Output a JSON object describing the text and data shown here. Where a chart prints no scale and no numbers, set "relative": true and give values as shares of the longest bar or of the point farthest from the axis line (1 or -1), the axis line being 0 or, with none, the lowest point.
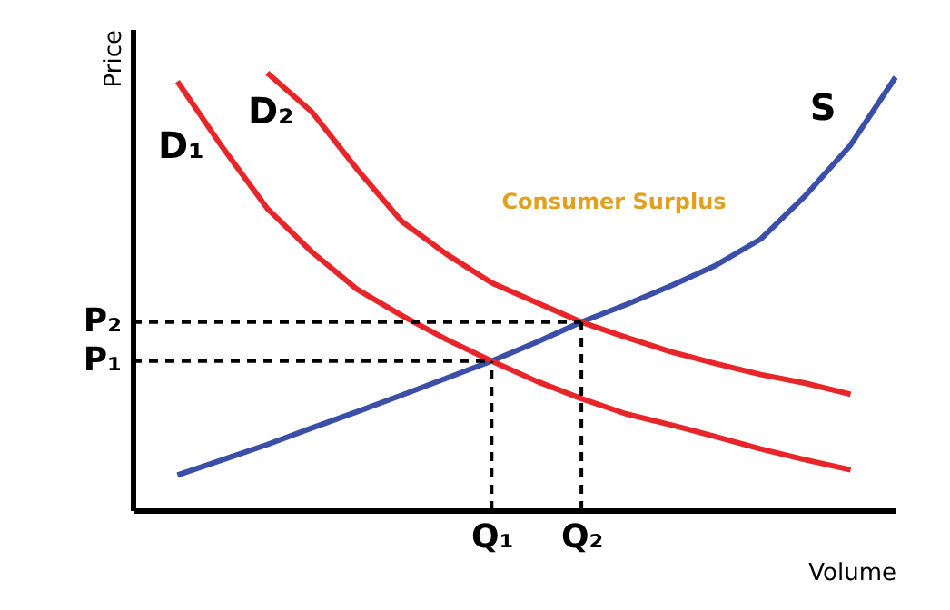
{
  "chart_data": {
    "type": "line",
    "relative": true,
    "xlabel": "Volume",
    "ylabel": "Price",
    "grid": false,
    "marker": "none",
    "categories": [
      null,
      null,
      null,
      null,
      null,
      null,
      null,
      null,
      "Q₁",
      null,
      "Q₂",
      null,
      null,
      null,
      null,
      null,
      null,
      null
    ],
    "annotations": [
      "Consumer Surplus"
    ],
    "series": [
      {
        "name": "S",
        "color": "#3b4fa8",
        "line_style": "solid",
        "values": [
          null,
          0.08,
          0.115,
          0.15,
          0.188,
          0.225,
          0.263,
          0.302,
          0.341,
          0.384,
          0.43,
          0.47,
          0.513,
          0.56,
          0.62,
          0.72,
          0.835,
          0.99
        ]
      },
      {
        "name": "D₁",
        "color": "#e8262a",
        "line_style": "solid",
        "values": [
          null,
          0.98,
          0.83,
          0.69,
          0.59,
          0.505,
          0.445,
          0.39,
          0.341,
          0.295,
          0.255,
          0.22,
          0.195,
          0.168,
          0.14,
          0.115,
          0.092,
          null
        ]
      },
      {
        "name": "D₂",
        "color": "#e8262a",
        "line_style": "solid",
        "values": [
          null,
          null,
          null,
          1.0,
          0.91,
          0.78,
          0.66,
          0.585,
          0.52,
          0.475,
          0.43,
          0.395,
          0.362,
          0.335,
          0.31,
          0.29,
          0.265,
          null
        ]
      },
      {
        "name": "P₁",
        "color": "#000000",
        "line_style": "dashed",
        "values": [
          0.341,
          0.341,
          0.341,
          0.341,
          0.341,
          0.341,
          0.341,
          0.341,
          0.341,
          null,
          null,
          null,
          null,
          null,
          null,
          null,
          null,
          null
        ]
      },
      {
        "name": "P₂",
        "color": "#000000",
        "line_style": "dashed",
        "values": [
          0.43,
          0.43,
          0.43,
          0.43,
          0.43,
          0.43,
          0.43,
          0.43,
          0.43,
          0.43,
          0.43,
          null,
          null,
          null,
          null,
          null,
          null,
          null
        ]
      },
      {
        "color": "#000000",
        "line_style": "dashed",
        "x": [
          "Q₁",
          "Q₁"
        ],
        "values": [
          0,
          0.341
        ]
      },
      {
        "color": "#000000",
        "line_style": "dashed",
        "x": [
          "Q₂",
          "Q₂"
        ],
        "values": [
          0,
          0.43
        ]
      }
    ]
  }
}
